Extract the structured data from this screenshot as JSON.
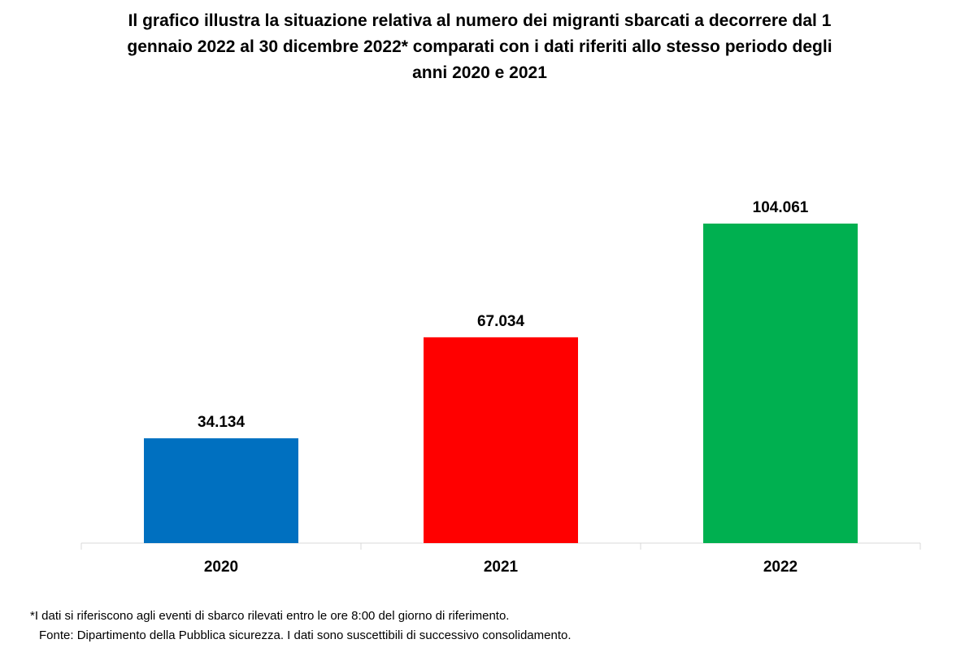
{
  "chart_data": {
    "type": "bar",
    "title": "Il grafico illustra la situazione relativa al numero dei migranti sbarcati a decorrere dal 1\ngennaio 2022 al 30 dicembre 2022* comparati con i dati riferiti allo stesso periodo degli\nanni 2020 e 2021",
    "categories": [
      "2020",
      "2021",
      "2022"
    ],
    "values": [
      34134,
      67034,
      104061
    ],
    "value_labels": [
      "34.134",
      "67.034",
      "104.061"
    ],
    "colors": [
      "#0070C0",
      "#FF0000",
      "#00B050"
    ],
    "xlabel": "",
    "ylabel": "",
    "ylim": [
      0,
      105000
    ],
    "grid": false,
    "legend": "none"
  },
  "footnotes": {
    "note": "*I dati si riferiscono agli eventi di sbarco rilevati entro le ore 8:00 del giorno di riferimento.",
    "source": "Fonte: Dipartimento della Pubblica sicurezza. I dati sono suscettibili di successivo consolidamento."
  }
}
